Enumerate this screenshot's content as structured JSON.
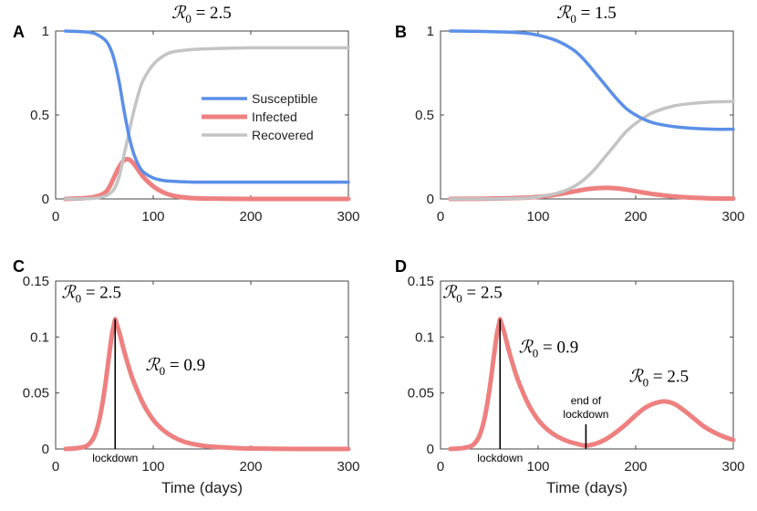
{
  "colors": {
    "susceptible": "#5b8fe8",
    "infected": "#ee8080",
    "recovered": "#c4c4c4",
    "annotation_line": "#000000"
  },
  "chart_data": [
    {
      "panel": "A",
      "type": "line",
      "title": "ℛ0 = 2.5",
      "title_parts": {
        "symbol": "ℛ",
        "sub": "0",
        "rest": " = 2.5"
      },
      "xlabel": "",
      "ylabel": "",
      "xlim": [
        0,
        300
      ],
      "ylim": [
        0,
        1
      ],
      "xticks": [
        0,
        100,
        200,
        300
      ],
      "xtick_labels": [
        "0",
        "100",
        "200",
        "300"
      ],
      "yticks": [
        0,
        0.5,
        1
      ],
      "ytick_labels": [
        "0",
        "0.5",
        "1"
      ],
      "legend": {
        "placement": "center-right",
        "entries": [
          "Susceptible",
          "Infected",
          "Recovered"
        ]
      },
      "series": [
        {
          "name": "Susceptible",
          "color_key": "susceptible",
          "x": [
            10,
            20,
            30,
            40,
            50,
            55,
            60,
            65,
            70,
            75,
            80,
            85,
            90,
            100,
            110,
            120,
            140,
            160,
            200,
            250,
            300
          ],
          "values": [
            1.0,
            0.998,
            0.995,
            0.985,
            0.95,
            0.91,
            0.83,
            0.7,
            0.53,
            0.38,
            0.27,
            0.2,
            0.16,
            0.125,
            0.11,
            0.105,
            0.1,
            0.1,
            0.1,
            0.1,
            0.1
          ]
        },
        {
          "name": "Infected",
          "color_key": "infected",
          "x": [
            10,
            20,
            30,
            40,
            50,
            55,
            60,
            65,
            70,
            75,
            80,
            85,
            90,
            100,
            110,
            120,
            130,
            140,
            160,
            200,
            250,
            300
          ],
          "values": [
            0.0,
            0.002,
            0.005,
            0.012,
            0.035,
            0.07,
            0.13,
            0.19,
            0.23,
            0.235,
            0.21,
            0.17,
            0.13,
            0.075,
            0.04,
            0.02,
            0.01,
            0.005,
            0.002,
            0.0,
            0.0,
            0.0
          ]
        },
        {
          "name": "Recovered",
          "color_key": "recovered",
          "x": [
            10,
            20,
            30,
            40,
            50,
            55,
            60,
            65,
            70,
            75,
            80,
            85,
            90,
            100,
            110,
            120,
            140,
            160,
            200,
            250,
            300
          ],
          "values": [
            0.0,
            0.0,
            0.001,
            0.004,
            0.015,
            0.03,
            0.06,
            0.13,
            0.26,
            0.39,
            0.52,
            0.63,
            0.71,
            0.8,
            0.85,
            0.875,
            0.89,
            0.895,
            0.9,
            0.9,
            0.9
          ]
        }
      ]
    },
    {
      "panel": "B",
      "type": "line",
      "title": "ℛ0 = 1.5",
      "title_parts": {
        "symbol": "ℛ",
        "sub": "0",
        "rest": " = 1.5"
      },
      "xlabel": "",
      "ylabel": "",
      "xlim": [
        0,
        300
      ],
      "ylim": [
        0,
        1
      ],
      "xticks": [
        0,
        100,
        200,
        300
      ],
      "xtick_labels": [
        "0",
        "100",
        "200",
        "300"
      ],
      "yticks": [
        0,
        0.5,
        1
      ],
      "ytick_labels": [
        "0",
        "0.5",
        "1"
      ],
      "series": [
        {
          "name": "Susceptible",
          "color_key": "susceptible",
          "x": [
            10,
            40,
            70,
            90,
            100,
            110,
            120,
            130,
            140,
            150,
            160,
            170,
            180,
            190,
            200,
            210,
            220,
            240,
            260,
            280,
            300
          ],
          "values": [
            1.0,
            0.998,
            0.993,
            0.985,
            0.975,
            0.96,
            0.94,
            0.91,
            0.87,
            0.81,
            0.74,
            0.67,
            0.6,
            0.54,
            0.5,
            0.47,
            0.45,
            0.43,
            0.42,
            0.415,
            0.415
          ]
        },
        {
          "name": "Infected",
          "color_key": "infected",
          "x": [
            10,
            40,
            70,
            90,
            100,
            110,
            120,
            130,
            140,
            150,
            160,
            170,
            180,
            190,
            200,
            210,
            220,
            240,
            260,
            280,
            300
          ],
          "values": [
            0.0,
            0.001,
            0.004,
            0.008,
            0.012,
            0.018,
            0.027,
            0.037,
            0.048,
            0.058,
            0.064,
            0.066,
            0.063,
            0.056,
            0.046,
            0.036,
            0.027,
            0.014,
            0.007,
            0.003,
            0.002
          ]
        },
        {
          "name": "Recovered",
          "color_key": "recovered",
          "x": [
            10,
            40,
            70,
            90,
            100,
            110,
            120,
            130,
            140,
            150,
            160,
            170,
            180,
            190,
            200,
            210,
            220,
            240,
            260,
            280,
            300
          ],
          "values": [
            0.0,
            0.0,
            0.002,
            0.006,
            0.012,
            0.022,
            0.035,
            0.055,
            0.085,
            0.13,
            0.19,
            0.26,
            0.33,
            0.4,
            0.45,
            0.49,
            0.52,
            0.555,
            0.57,
            0.578,
            0.58
          ]
        }
      ]
    },
    {
      "panel": "C",
      "type": "line",
      "title": "",
      "xlabel": "Time (days)",
      "ylabel": "",
      "xlim": [
        0,
        300
      ],
      "ylim": [
        0,
        0.15
      ],
      "xticks": [
        0,
        100,
        200,
        300
      ],
      "xtick_labels": [
        "0",
        "100",
        "200",
        "300"
      ],
      "yticks": [
        0,
        0.05,
        0.1,
        0.15
      ],
      "ytick_labels": [
        "0",
        "0.05",
        "0.1",
        "0.15"
      ],
      "annotations": [
        {
          "type": "text",
          "parts": {
            "symbol": "ℛ",
            "sub": "0",
            "rest": " = 2.5"
          },
          "x": 6,
          "y": 0.14
        },
        {
          "type": "text",
          "parts": {
            "symbol": "ℛ",
            "sub": "0",
            "rest": " = 0.9"
          },
          "x": 92,
          "y": 0.075
        },
        {
          "type": "vline",
          "x": 61,
          "y_top": 0.116,
          "label": "lockdown"
        }
      ],
      "series": [
        {
          "name": "Infected",
          "color_key": "infected",
          "x": [
            10,
            20,
            30,
            35,
            40,
            45,
            50,
            55,
            58,
            61,
            65,
            70,
            75,
            80,
            90,
            100,
            110,
            120,
            130,
            140,
            150,
            160,
            180,
            200,
            250,
            300
          ],
          "values": [
            0.0,
            0.0005,
            0.002,
            0.005,
            0.012,
            0.027,
            0.052,
            0.085,
            0.104,
            0.116,
            0.105,
            0.088,
            0.073,
            0.06,
            0.04,
            0.026,
            0.017,
            0.011,
            0.007,
            0.0045,
            0.003,
            0.002,
            0.001,
            0.0004,
            0.0,
            0.0
          ]
        }
      ]
    },
    {
      "panel": "D",
      "type": "line",
      "title": "",
      "xlabel": "Time (days)",
      "ylabel": "",
      "xlim": [
        0,
        300
      ],
      "ylim": [
        0,
        0.15
      ],
      "xticks": [
        0,
        100,
        200,
        300
      ],
      "xtick_labels": [
        "0",
        "100",
        "200",
        "300"
      ],
      "yticks": [
        0,
        0.05,
        0.1,
        0.15
      ],
      "ytick_labels": [
        "0",
        "0.05",
        "0.1",
        "0.15"
      ],
      "annotations": [
        {
          "type": "text",
          "parts": {
            "symbol": "ℛ",
            "sub": "0",
            "rest": " = 2.5"
          },
          "x": 2,
          "y": 0.14
        },
        {
          "type": "text",
          "parts": {
            "symbol": "ℛ",
            "sub": "0",
            "rest": " = 0.9"
          },
          "x": 80,
          "y": 0.091
        },
        {
          "type": "text",
          "parts": {
            "symbol": "ℛ",
            "sub": "0",
            "rest": " = 2.5"
          },
          "x": 193,
          "y": 0.065
        },
        {
          "type": "vline",
          "x": 61,
          "y_top": 0.116,
          "label": "lockdown"
        },
        {
          "type": "vline",
          "x": 149,
          "y_top": 0.022,
          "label_lines": [
            "end of",
            "lockdown"
          ]
        }
      ],
      "series": [
        {
          "name": "Infected",
          "color_key": "infected",
          "x": [
            10,
            20,
            30,
            35,
            40,
            45,
            50,
            55,
            58,
            61,
            65,
            70,
            75,
            80,
            90,
            100,
            110,
            120,
            130,
            140,
            149,
            160,
            170,
            180,
            190,
            200,
            210,
            220,
            230,
            240,
            250,
            260,
            270,
            280,
            290,
            300
          ],
          "values": [
            0.0,
            0.0005,
            0.002,
            0.005,
            0.012,
            0.027,
            0.052,
            0.085,
            0.104,
            0.116,
            0.105,
            0.088,
            0.073,
            0.06,
            0.04,
            0.026,
            0.017,
            0.011,
            0.007,
            0.0045,
            0.003,
            0.005,
            0.009,
            0.015,
            0.022,
            0.03,
            0.037,
            0.041,
            0.0425,
            0.04,
            0.034,
            0.027,
            0.02,
            0.015,
            0.011,
            0.008
          ]
        }
      ]
    }
  ]
}
